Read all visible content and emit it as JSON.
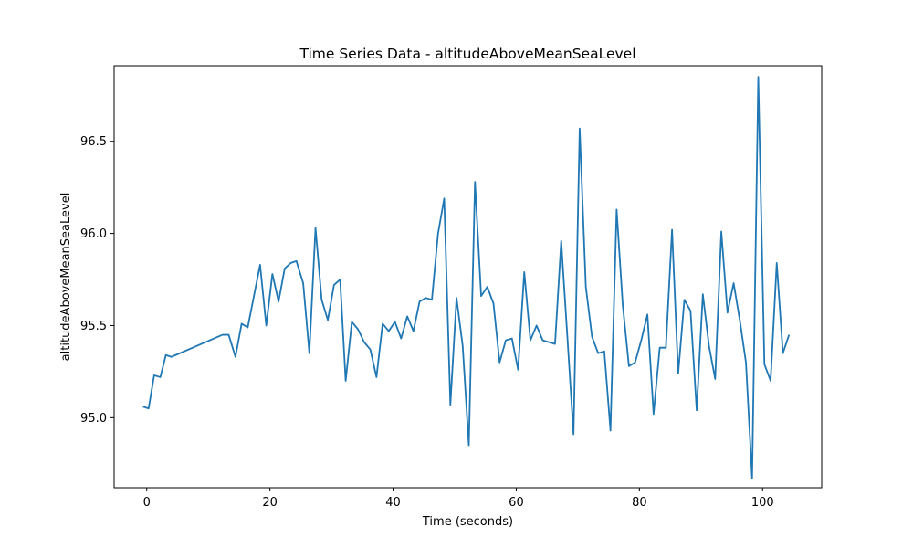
{
  "chart_data": {
    "type": "line",
    "title": "Time Series Data - altitudeAboveMeanSeaLevel",
    "xlabel": "Time (seconds)",
    "ylabel": "altitudeAboveMeanSeaLevel",
    "xlim": [
      -5.3,
      109.6
    ],
    "ylim": [
      94.62,
      96.91
    ],
    "xticks": [
      0,
      20,
      40,
      60,
      80,
      100
    ],
    "xtick_labels": [
      "0",
      "20",
      "40",
      "60",
      "80",
      "100"
    ],
    "yticks": [
      95.0,
      95.5,
      96.0,
      96.5
    ],
    "ytick_labels": [
      "95.0",
      "95.5",
      "96.0",
      "96.5"
    ],
    "grid": false,
    "legend": "none",
    "series": [
      {
        "color": "#1f77b4",
        "x": [
          -0.6,
          0.3,
          1.2,
          2.2,
          3.1,
          4.0,
          12.3,
          13.3,
          14.4,
          15.4,
          16.4,
          17.4,
          18.4,
          19.4,
          20.4,
          21.4,
          22.4,
          23.4,
          24.3,
          25.4,
          26.4,
          27.4,
          28.4,
          29.4,
          30.4,
          31.4,
          32.3,
          33.3,
          34.3,
          35.3,
          36.3,
          37.3,
          38.3,
          39.3,
          40.3,
          41.3,
          42.3,
          43.3,
          44.3,
          45.3,
          46.3,
          47.3,
          48.3,
          49.3,
          50.3,
          51.3,
          52.3,
          53.3,
          54.3,
          55.3,
          56.3,
          57.3,
          58.3,
          59.3,
          60.3,
          61.3,
          62.3,
          63.3,
          64.3,
          65.3,
          66.3,
          67.3,
          68.3,
          69.3,
          70.3,
          71.3,
          72.3,
          73.3,
          74.3,
          75.3,
          76.3,
          77.3,
          78.3,
          79.3,
          80.3,
          81.3,
          82.3,
          83.3,
          84.3,
          85.3,
          86.3,
          87.3,
          88.3,
          89.3,
          90.3,
          91.3,
          92.3,
          93.3,
          94.3,
          95.3,
          96.3,
          97.3,
          98.3,
          99.3,
          100.3,
          101.3,
          102.3,
          103.3,
          104.3
        ],
        "y": [
          95.06,
          95.05,
          95.23,
          95.22,
          95.34,
          95.33,
          95.45,
          95.45,
          95.33,
          95.51,
          95.49,
          95.66,
          95.83,
          95.5,
          95.78,
          95.63,
          95.81,
          95.84,
          95.85,
          95.73,
          95.35,
          96.03,
          95.64,
          95.53,
          95.72,
          95.75,
          95.2,
          95.52,
          95.48,
          95.41,
          95.37,
          95.22,
          95.51,
          95.47,
          95.52,
          95.43,
          95.55,
          95.47,
          95.63,
          95.65,
          95.64,
          96.0,
          96.19,
          95.07,
          95.65,
          95.39,
          94.85,
          96.28,
          95.66,
          95.71,
          95.62,
          95.3,
          95.42,
          95.43,
          95.26,
          95.79,
          95.42,
          95.5,
          95.42,
          95.41,
          95.4,
          95.96,
          95.44,
          94.91,
          96.57,
          95.71,
          95.44,
          95.35,
          95.36,
          94.93,
          96.13,
          95.61,
          95.28,
          95.3,
          95.42,
          95.56,
          95.02,
          95.38,
          95.38,
          96.02,
          95.24,
          95.64,
          95.58,
          95.04,
          95.67,
          95.39,
          95.21,
          96.01,
          95.57,
          95.73,
          95.53,
          95.3,
          94.67,
          96.85,
          95.29,
          95.2,
          95.84,
          95.35,
          95.45
        ]
      }
    ]
  }
}
